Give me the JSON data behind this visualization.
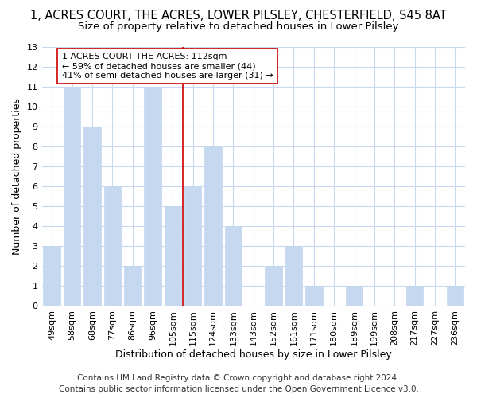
{
  "title_line1": "1, ACRES COURT, THE ACRES, LOWER PILSLEY, CHESTERFIELD, S45 8AT",
  "title_line2": "Size of property relative to detached houses in Lower Pilsley",
  "xlabel": "Distribution of detached houses by size in Lower Pilsley",
  "ylabel": "Number of detached properties",
  "categories": [
    "49sqm",
    "58sqm",
    "68sqm",
    "77sqm",
    "86sqm",
    "96sqm",
    "105sqm",
    "115sqm",
    "124sqm",
    "133sqm",
    "143sqm",
    "152sqm",
    "161sqm",
    "171sqm",
    "180sqm",
    "189sqm",
    "199sqm",
    "208sqm",
    "217sqm",
    "227sqm",
    "236sqm"
  ],
  "values": [
    3,
    11,
    9,
    6,
    2,
    11,
    5,
    6,
    8,
    4,
    0,
    2,
    3,
    1,
    0,
    1,
    0,
    0,
    1,
    0,
    1
  ],
  "bar_color": "#c5d8ef",
  "bar_edge_color": "#c5d8ef",
  "vline_x": 7.0,
  "vline_color": "#cc0000",
  "ylim": [
    0,
    13
  ],
  "yticks": [
    0,
    1,
    2,
    3,
    4,
    5,
    6,
    7,
    8,
    9,
    10,
    11,
    12,
    13
  ],
  "annotation_text": "1 ACRES COURT THE ACRES: 112sqm\n← 59% of detached houses are smaller (44)\n41% of semi-detached houses are larger (31) →",
  "annotation_box_color": "#ffffff",
  "annotation_box_edge": "#cc0000",
  "footer_line1": "Contains HM Land Registry data © Crown copyright and database right 2024.",
  "footer_line2": "Contains public sector information licensed under the Open Government Licence v3.0.",
  "background_color": "#ffffff",
  "grid_color": "#c8d8ee",
  "title_fontsize": 10.5,
  "subtitle_fontsize": 9.5,
  "tick_fontsize": 8,
  "label_fontsize": 9,
  "footer_fontsize": 7.5
}
